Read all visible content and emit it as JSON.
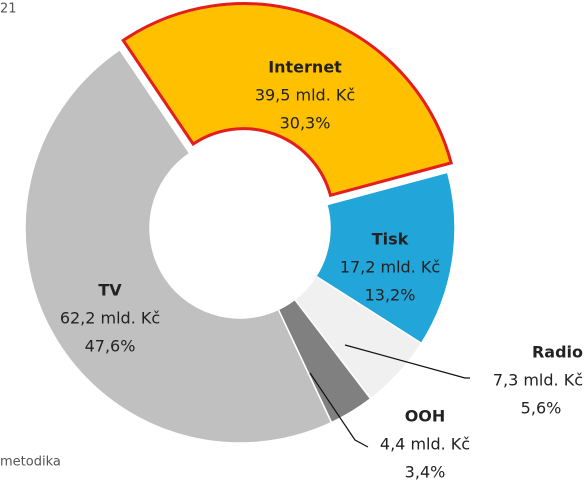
{
  "header": {
    "corner_text": "21",
    "footer_text": "metodika"
  },
  "chart_data": {
    "type": "donut",
    "categories": [
      "Internet",
      "Tisk",
      "Radio",
      "OOH",
      "TV"
    ],
    "values": [
      30.3,
      13.2,
      5.6,
      3.4,
      47.6
    ],
    "value_labels": [
      "30,3%",
      "13,2%",
      "5,6%",
      "3,4%",
      "47,6%"
    ],
    "amount_labels": [
      "39,5 mld. Kč",
      "17,2 mld. Kč",
      "7,3 mld. Kč",
      "4,4 mld. Kč",
      "62,2 mld. Kč"
    ],
    "colors": [
      "#ffc000",
      "#22a5d8",
      "#f0f0f0",
      "#808080",
      "#c0c0c0"
    ],
    "highlight_color": "#e41e1e"
  }
}
